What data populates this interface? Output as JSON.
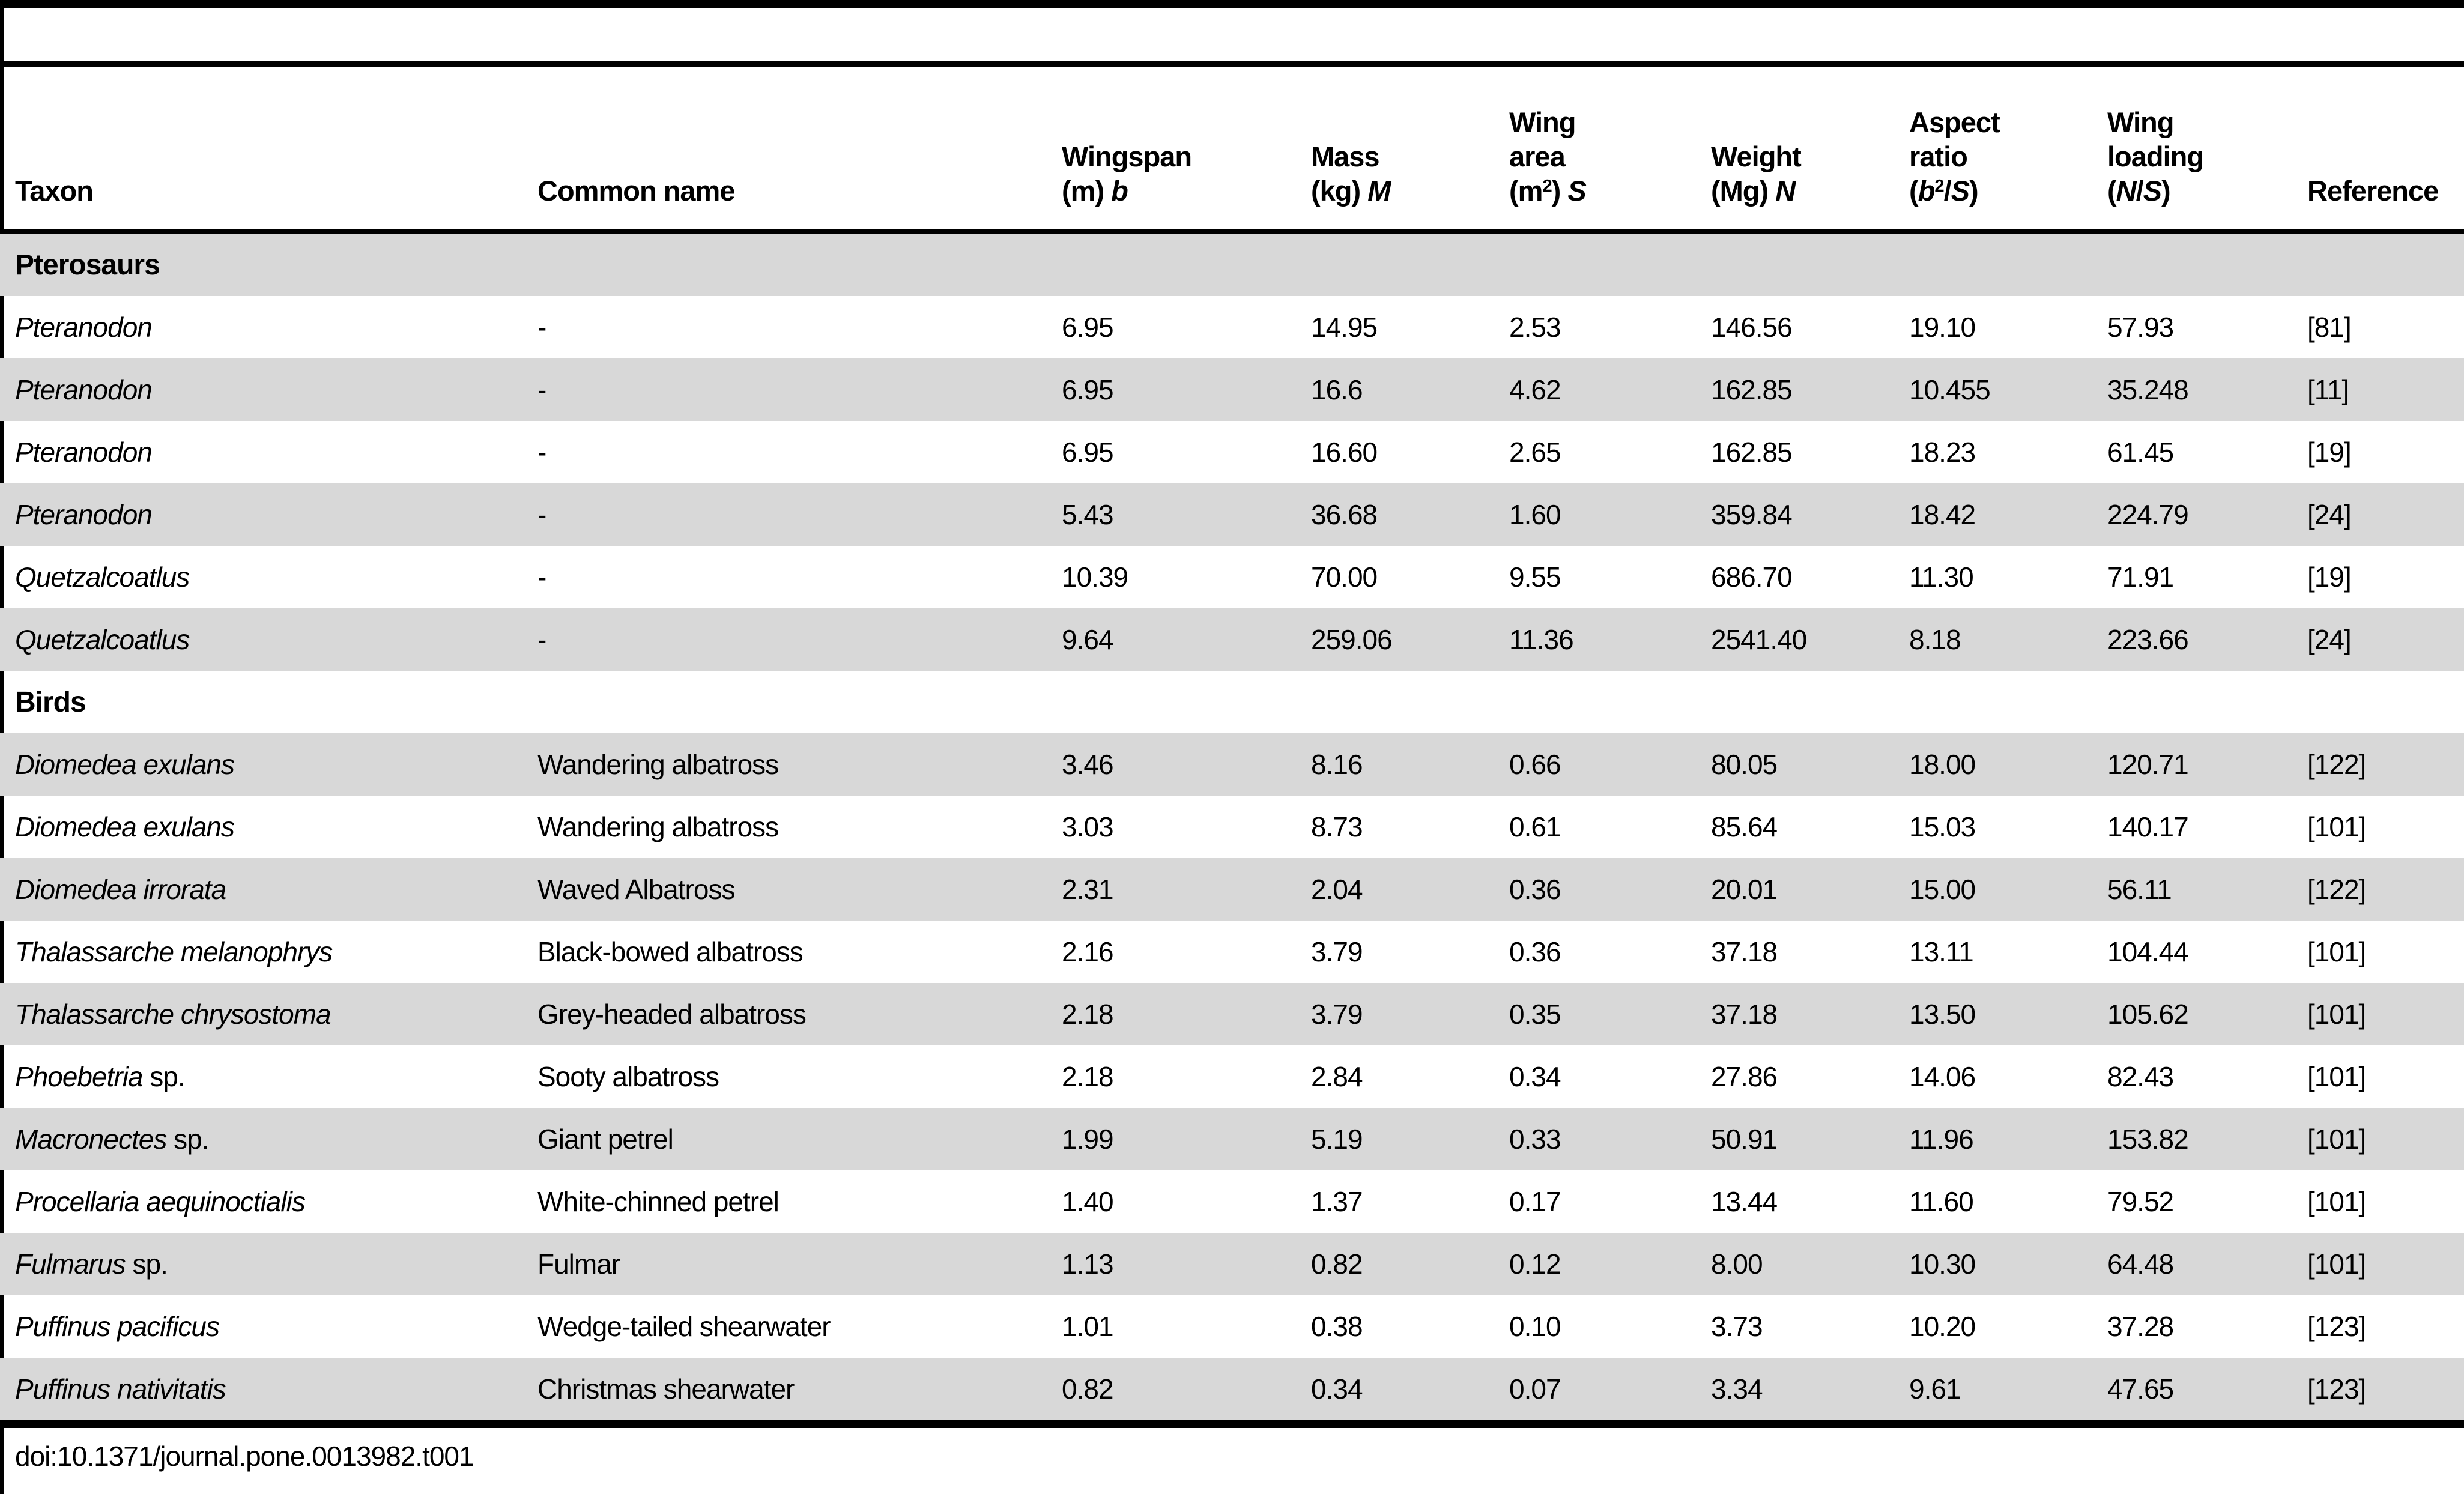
{
  "page": {
    "doi": "doi:10.1371/journal.pone.0013982.t001"
  },
  "colors": {
    "row_stripe": "#d8d8d8",
    "rule": "#000000",
    "background": "#ffffff"
  },
  "table": {
    "headers": [
      {
        "id": "taxon",
        "lines": [
          "Taxon"
        ]
      },
      {
        "id": "common-name",
        "lines": [
          "Common name"
        ]
      },
      {
        "id": "wingspan",
        "lines": [
          "Wingspan",
          "(m) *b*"
        ]
      },
      {
        "id": "mass",
        "lines": [
          "Mass",
          "(kg) *M*"
        ]
      },
      {
        "id": "wing-area",
        "lines": [
          "Wing",
          "area",
          "(m^2) *S*"
        ]
      },
      {
        "id": "weight",
        "lines": [
          "Weight",
          "(Mg) *N*"
        ]
      },
      {
        "id": "aspect-ratio",
        "lines": [
          "Aspect",
          "ratio",
          "(*b*^2/*S*)"
        ]
      },
      {
        "id": "wing-loading",
        "lines": [
          "Wing",
          "loading",
          "(*N*/*S*)"
        ]
      },
      {
        "id": "reference",
        "lines": [
          "Reference"
        ]
      }
    ],
    "sections": [
      {
        "label": "Pterosaurs",
        "rows": [
          {
            "taxon": "*Pteranodon*",
            "common": "-",
            "values": [
              "6.95",
              "14.95",
              "2.53",
              "146.56",
              "19.10",
              "57.93",
              "[81]"
            ]
          },
          {
            "taxon": "*Pteranodon*",
            "common": "-",
            "values": [
              "6.95",
              "16.6",
              "4.62",
              "162.85",
              "10.455",
              "35.248",
              "[11]"
            ]
          },
          {
            "taxon": "*Pteranodon*",
            "common": "-",
            "values": [
              "6.95",
              "16.60",
              "2.65",
              "162.85",
              "18.23",
              "61.45",
              "[19]"
            ]
          },
          {
            "taxon": "*Pteranodon*",
            "common": "-",
            "values": [
              "5.43",
              "36.68",
              "1.60",
              "359.84",
              "18.42",
              "224.79",
              "[24]"
            ]
          },
          {
            "taxon": "*Quetzalcoatlus*",
            "common": "-",
            "values": [
              "10.39",
              "70.00",
              "9.55",
              "686.70",
              "11.30",
              "71.91",
              "[19]"
            ]
          },
          {
            "taxon": "*Quetzalcoatlus*",
            "common": "-",
            "values": [
              "9.64",
              "259.06",
              "11.36",
              "2541.40",
              "8.18",
              "223.66",
              "[24]"
            ]
          }
        ]
      },
      {
        "label": "Birds",
        "rows": [
          {
            "taxon": "*Diomedea exulans*",
            "common": "Wandering albatross",
            "values": [
              "3.46",
              "8.16",
              "0.66",
              "80.05",
              "18.00",
              "120.71",
              "[122]"
            ]
          },
          {
            "taxon": "*Diomedea exulans*",
            "common": "Wandering albatross",
            "values": [
              "3.03",
              "8.73",
              "0.61",
              "85.64",
              "15.03",
              "140.17",
              "[101]"
            ]
          },
          {
            "taxon": "*Diomedea irrorata*",
            "common": "Waved Albatross",
            "values": [
              "2.31",
              "2.04",
              "0.36",
              "20.01",
              "15.00",
              "56.11",
              "[122]"
            ]
          },
          {
            "taxon": "*Thalassarche melanophrys*",
            "common": "Black-bowed albatross",
            "values": [
              "2.16",
              "3.79",
              "0.36",
              "37.18",
              "13.11",
              "104.44",
              "[101]"
            ]
          },
          {
            "taxon": "*Thalassarche chrysostoma*",
            "common": "Grey-headed albatross",
            "values": [
              "2.18",
              "3.79",
              "0.35",
              "37.18",
              "13.50",
              "105.62",
              "[101]"
            ]
          },
          {
            "taxon": "*Phoebetria* sp.",
            "common": "Sooty albatross",
            "values": [
              "2.18",
              "2.84",
              "0.34",
              "27.86",
              "14.06",
              "82.43",
              "[101]"
            ]
          },
          {
            "taxon": "*Macronectes* sp.",
            "common": "Giant petrel",
            "values": [
              "1.99",
              "5.19",
              "0.33",
              "50.91",
              "11.96",
              "153.82",
              "[101]"
            ]
          },
          {
            "taxon": "*Procellaria aequinoctialis*",
            "common": "White-chinned petrel",
            "values": [
              "1.40",
              "1.37",
              "0.17",
              "13.44",
              "11.60",
              "79.52",
              "[101]"
            ]
          },
          {
            "taxon": "*Fulmarus* sp.",
            "common": "Fulmar",
            "values": [
              "1.13",
              "0.82",
              "0.12",
              "8.00",
              "10.30",
              "64.48",
              "[101]"
            ]
          },
          {
            "taxon": "*Puffinus pacificus*",
            "common": "Wedge-tailed shearwater",
            "values": [
              "1.01",
              "0.38",
              "0.10",
              "3.73",
              "10.20",
              "37.28",
              "[123]"
            ]
          },
          {
            "taxon": "*Puffinus nativitatis*",
            "common": "Christmas shearwater",
            "values": [
              "0.82",
              "0.34",
              "0.07",
              "3.34",
              "9.61",
              "47.65",
              "[123]"
            ]
          }
        ]
      }
    ]
  }
}
